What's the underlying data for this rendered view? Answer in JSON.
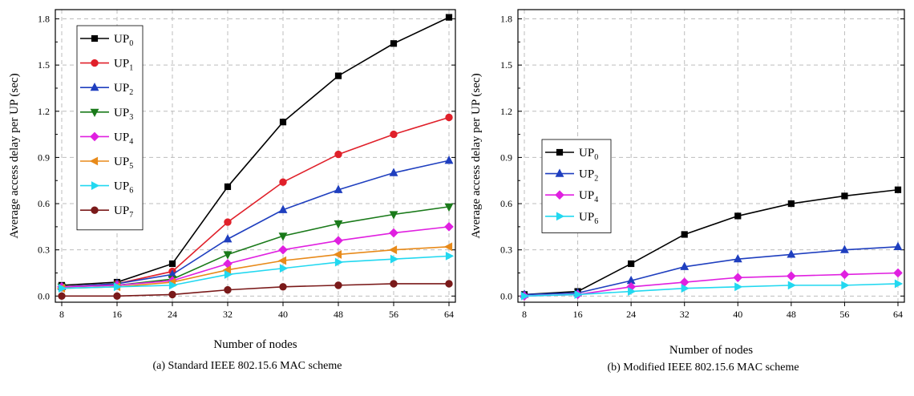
{
  "chart_data": [
    {
      "type": "line",
      "caption": "(a) Standard IEEE 802.15.6 MAC scheme",
      "xlabel": "Number of nodes",
      "ylabel": "Average access delay per UP (sec)",
      "xlim": [
        8,
        64
      ],
      "ylim": [
        -0.04,
        1.86
      ],
      "x": [
        8,
        16,
        24,
        32,
        40,
        48,
        56,
        64
      ],
      "xticks": [
        "8",
        "16",
        "24",
        "32",
        "40",
        "48",
        "56",
        "64"
      ],
      "yticks": [
        0.0,
        0.3,
        0.6,
        0.9,
        1.2,
        1.5,
        1.8
      ],
      "ytick_labels": [
        "0.0",
        "0.3",
        "0.6",
        "0.9",
        "1.2",
        "1.5",
        "1.8"
      ],
      "grid": true,
      "legend_position": "top-left",
      "series": [
        {
          "name": "UP",
          "sub": "0",
          "color": "#000000",
          "marker": "square",
          "values": [
            0.07,
            0.09,
            0.21,
            0.71,
            1.13,
            1.43,
            1.64,
            1.81
          ]
        },
        {
          "name": "UP",
          "sub": "1",
          "color": "#e0202a",
          "marker": "circle",
          "values": [
            0.06,
            0.08,
            0.16,
            0.48,
            0.74,
            0.92,
            1.05,
            1.16
          ]
        },
        {
          "name": "UP",
          "sub": "2",
          "color": "#1f3fbf",
          "marker": "triangle-up",
          "values": [
            0.06,
            0.08,
            0.14,
            0.37,
            0.56,
            0.69,
            0.8,
            0.88
          ]
        },
        {
          "name": "UP",
          "sub": "3",
          "color": "#1a7a1a",
          "marker": "triangle-down",
          "values": [
            0.06,
            0.07,
            0.11,
            0.27,
            0.39,
            0.47,
            0.53,
            0.58
          ]
        },
        {
          "name": "UP",
          "sub": "4",
          "color": "#e020e0",
          "marker": "diamond",
          "values": [
            0.06,
            0.07,
            0.1,
            0.21,
            0.3,
            0.36,
            0.41,
            0.45
          ]
        },
        {
          "name": "UP",
          "sub": "5",
          "color": "#e88a1a",
          "marker": "triangle-left",
          "values": [
            0.05,
            0.06,
            0.09,
            0.17,
            0.23,
            0.27,
            0.3,
            0.32
          ]
        },
        {
          "name": "UP",
          "sub": "6",
          "color": "#22d8f0",
          "marker": "triangle-right",
          "values": [
            0.05,
            0.06,
            0.07,
            0.14,
            0.18,
            0.22,
            0.24,
            0.26
          ]
        },
        {
          "name": "UP",
          "sub": "7",
          "color": "#7a1a1a",
          "marker": "circle",
          "values": [
            0.0,
            0.0,
            0.01,
            0.04,
            0.06,
            0.07,
            0.08,
            0.08
          ]
        }
      ]
    },
    {
      "type": "line",
      "caption": "(b) Modified IEEE 802.15.6 MAC scheme",
      "xlabel": "Number of nodes",
      "ylabel": "Average access delay per UP (sec)",
      "xlim": [
        8,
        64
      ],
      "ylim": [
        -0.04,
        1.86
      ],
      "x": [
        8,
        16,
        24,
        32,
        40,
        48,
        56,
        64
      ],
      "xticks": [
        "8",
        "16",
        "24",
        "32",
        "40",
        "48",
        "56",
        "64"
      ],
      "yticks": [
        0.0,
        0.3,
        0.6,
        0.9,
        1.2,
        1.5,
        1.8
      ],
      "ytick_labels": [
        "0.0",
        "0.3",
        "0.6",
        "0.9",
        "1.2",
        "1.5",
        "1.8"
      ],
      "grid": true,
      "legend_position": "upper-left",
      "series": [
        {
          "name": "UP",
          "sub": "0",
          "color": "#000000",
          "marker": "square",
          "values": [
            0.01,
            0.03,
            0.21,
            0.4,
            0.52,
            0.6,
            0.65,
            0.69
          ]
        },
        {
          "name": "UP",
          "sub": "2",
          "color": "#1f3fbf",
          "marker": "triangle-up",
          "values": [
            0.01,
            0.02,
            0.1,
            0.19,
            0.24,
            0.27,
            0.3,
            0.32
          ]
        },
        {
          "name": "UP",
          "sub": "4",
          "color": "#e020e0",
          "marker": "diamond",
          "values": [
            0.0,
            0.01,
            0.06,
            0.09,
            0.12,
            0.13,
            0.14,
            0.15
          ]
        },
        {
          "name": "UP",
          "sub": "6",
          "color": "#22d8f0",
          "marker": "triangle-right",
          "values": [
            0.0,
            0.01,
            0.03,
            0.05,
            0.06,
            0.07,
            0.07,
            0.08
          ]
        }
      ]
    }
  ]
}
